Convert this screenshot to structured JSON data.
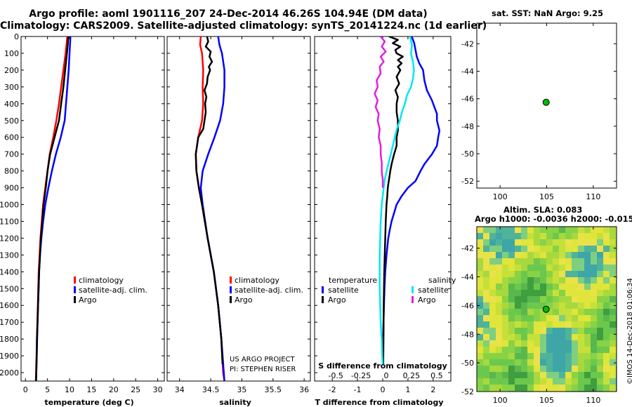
{
  "header": {
    "title_line1": "Argo profile: aoml 1901116_207 24-Dec-2014 46.26S 104.94E (DM data)",
    "title_line2": "Climatology: CARS2009. Satellite-adjusted climatology: synTS_20141224.nc (1d earlier)"
  },
  "colors": {
    "climatology": "#ff0000",
    "satellite": "#0000ff",
    "argo": "#000000",
    "satellite_salinity": "#00e8f0",
    "argo_salinity": "#e020e0",
    "dot": "#00bb00"
  },
  "credit": {
    "line1": "US ARGO PROJECT",
    "line2": "PI: STEPHEN RISER"
  },
  "watermark": "©IMOS 14-Dec-2018 01:06:34",
  "chart_data": [
    {
      "id": "temperature",
      "type": "line",
      "title": "",
      "xlabel": "temperature (deg C)",
      "ylabel": "",
      "xlim": [
        -1,
        31.5
      ],
      "ylim": [
        2050,
        0
      ],
      "xticks": [
        0,
        5,
        10,
        15,
        20,
        25,
        30
      ],
      "yticks": [
        0,
        100,
        200,
        300,
        400,
        500,
        600,
        700,
        800,
        900,
        1000,
        1100,
        1200,
        1300,
        1400,
        1500,
        1600,
        1700,
        1800,
        1900,
        2000
      ],
      "legend": {
        "position": "bottom-right",
        "entries": [
          "climatology",
          "satellite-adj. clim.",
          "Argo"
        ]
      },
      "series": [
        {
          "name": "climatology",
          "color": "#ff0000",
          "depth": [
            0,
            50,
            100,
            200,
            300,
            400,
            500,
            600,
            700,
            800,
            900,
            1000,
            1100,
            1200,
            1300,
            1400,
            1500,
            1600,
            1700,
            1800,
            1900,
            2000,
            2050
          ],
          "values": [
            9.5,
            9.3,
            9.1,
            8.6,
            8.1,
            7.6,
            7.0,
            6.3,
            5.5,
            5.0,
            4.5,
            4.0,
            3.7,
            3.4,
            3.2,
            3.0,
            2.9,
            2.8,
            2.7,
            2.6,
            2.5,
            2.4,
            2.35
          ]
        },
        {
          "name": "satellite-adj. clim.",
          "color": "#0000ff",
          "depth": [
            0,
            50,
            100,
            200,
            300,
            400,
            500,
            600,
            700,
            800,
            900,
            1000,
            1100,
            1200,
            1300,
            1400,
            1500,
            1600,
            1700,
            1800,
            1900,
            2000,
            2050
          ],
          "values": [
            10.2,
            10.1,
            10.0,
            9.8,
            9.5,
            9.2,
            8.9,
            8.0,
            6.9,
            6.0,
            5.2,
            4.5,
            4.0,
            3.6,
            3.3,
            3.1,
            3.0,
            2.85,
            2.75,
            2.65,
            2.55,
            2.45,
            2.4
          ]
        },
        {
          "name": "Argo",
          "color": "#000000",
          "depth": [
            0,
            50,
            100,
            200,
            300,
            400,
            500,
            600,
            700,
            800,
            900,
            1000,
            1100,
            1200,
            1300,
            1400,
            1500,
            1600,
            1700,
            1800,
            1900,
            2000,
            2050
          ],
          "values": [
            9.7,
            9.6,
            9.4,
            9.0,
            8.6,
            8.1,
            7.6,
            6.6,
            5.6,
            5.0,
            4.6,
            4.1,
            3.8,
            3.5,
            3.3,
            3.1,
            2.95,
            2.85,
            2.75,
            2.6,
            2.55,
            2.45,
            2.4
          ]
        }
      ]
    },
    {
      "id": "salinity",
      "type": "line",
      "title": "",
      "xlabel": "salinity",
      "ylabel": "",
      "xlim": [
        33.8,
        36.1
      ],
      "ylim": [
        2050,
        0
      ],
      "xticks": [
        34,
        34.5,
        35,
        35.5,
        36
      ],
      "legend": {
        "position": "bottom-right",
        "entries": [
          "climatology",
          "satellite-adj. clim.",
          "Argo"
        ]
      },
      "series": [
        {
          "name": "climatology",
          "color": "#ff0000",
          "depth": [
            0,
            50,
            100,
            200,
            300,
            400,
            500,
            600,
            700,
            800,
            900,
            1000,
            1200,
            1400,
            1600,
            1800,
            2000,
            2050
          ],
          "values": [
            34.34,
            34.33,
            34.36,
            34.38,
            34.37,
            34.38,
            34.36,
            34.3,
            34.26,
            34.27,
            34.31,
            34.36,
            34.45,
            34.55,
            34.62,
            34.67,
            34.7,
            34.72
          ]
        },
        {
          "name": "satellite-adj. clim.",
          "color": "#0000ff",
          "depth": [
            0,
            50,
            100,
            200,
            300,
            400,
            500,
            600,
            700,
            800,
            900,
            1000,
            1200,
            1400,
            1600,
            1800,
            2000,
            2050
          ],
          "values": [
            34.62,
            34.64,
            34.68,
            34.72,
            34.72,
            34.7,
            34.65,
            34.56,
            34.46,
            34.37,
            34.34,
            34.37,
            34.45,
            34.55,
            34.62,
            34.67,
            34.71,
            34.72
          ]
        },
        {
          "name": "Argo",
          "color": "#000000",
          "depth": [
            0,
            30,
            60,
            90,
            120,
            150,
            180,
            200,
            240,
            280,
            320,
            360,
            400,
            450,
            500,
            550,
            600,
            700,
            800,
            900,
            1000,
            1200,
            1400,
            1600,
            1800,
            1950
          ],
          "values": [
            34.44,
            34.46,
            34.42,
            34.5,
            34.48,
            34.52,
            34.47,
            34.49,
            34.45,
            34.44,
            34.4,
            34.43,
            34.41,
            34.42,
            34.4,
            34.38,
            34.3,
            34.26,
            34.27,
            34.31,
            34.36,
            34.45,
            34.55,
            34.62,
            34.67,
            34.69
          ]
        }
      ]
    },
    {
      "id": "differences",
      "type": "line",
      "title": "",
      "xlabel": "T difference from climatology",
      "xlabel_top": "S difference from climatology",
      "ylabel": "",
      "xlim": [
        -2.7,
        2.7
      ],
      "ylim": [
        2050,
        0
      ],
      "xticks": [
        -2,
        -1,
        0,
        1,
        2
      ],
      "xticks_top": [
        -0.5,
        -0.25,
        0,
        0.25,
        0.5
      ],
      "xticks_top_labels": [
        "-0.5",
        "-0.25",
        "0",
        "0.25",
        "0.5"
      ],
      "legend": {
        "position": "bottom",
        "headers": [
          "temperature",
          "salinity"
        ],
        "entries": [
          "satellite",
          "Argo",
          "satellite",
          "Argo"
        ]
      },
      "series": [
        {
          "name": "temperature satellite",
          "color": "#0000ff",
          "axis": "T",
          "depth": [
            0,
            40,
            80,
            120,
            160,
            200,
            260,
            320,
            380,
            420,
            460,
            500,
            560,
            600,
            650,
            700,
            760,
            800,
            860,
            900,
            950,
            1000,
            1050,
            1100,
            1150,
            1200,
            1300,
            1400,
            1500,
            1600,
            1700,
            1800,
            1900,
            1950
          ],
          "values": [
            1.15,
            1.25,
            1.3,
            1.35,
            1.45,
            1.6,
            1.65,
            1.75,
            1.95,
            2.05,
            2.15,
            2.15,
            2.25,
            2.2,
            2.15,
            1.95,
            1.65,
            1.5,
            1.3,
            1.0,
            0.75,
            0.55,
            0.45,
            0.35,
            0.28,
            0.22,
            0.15,
            0.1,
            0.07,
            0.05,
            0.03,
            0.02,
            0.01,
            0.0
          ]
        },
        {
          "name": "temperature Argo",
          "color": "#000000",
          "axis": "T",
          "depth": [
            0,
            20,
            40,
            60,
            80,
            100,
            120,
            140,
            160,
            180,
            200,
            240,
            280,
            320,
            360,
            400,
            450,
            500,
            560,
            600,
            650,
            700,
            760,
            800,
            850,
            900,
            950,
            1000,
            1100,
            1200,
            1300,
            1400,
            1500,
            1600,
            1800,
            1950
          ],
          "values": [
            0.25,
            0.6,
            0.4,
            0.7,
            0.5,
            0.55,
            0.8,
            0.6,
            0.75,
            0.6,
            0.7,
            0.55,
            0.65,
            0.5,
            0.6,
            0.55,
            0.55,
            0.6,
            0.6,
            0.55,
            0.55,
            0.45,
            0.35,
            0.3,
            0.25,
            0.2,
            0.18,
            0.15,
            0.12,
            0.1,
            0.08,
            0.06,
            0.05,
            0.04,
            0.03,
            0.02
          ]
        },
        {
          "name": "salinity satellite",
          "color": "#00e8f0",
          "axis": "S",
          "depth": [
            0,
            50,
            100,
            150,
            200,
            250,
            300,
            350,
            400,
            450,
            500,
            550,
            600,
            650,
            700,
            750,
            800,
            850,
            900,
            950,
            1000,
            1100,
            1200,
            1300,
            1400,
            1500,
            1600,
            1700,
            1800,
            1900,
            1950
          ],
          "values": [
            0.27,
            0.29,
            0.28,
            0.3,
            0.31,
            0.3,
            0.28,
            0.24,
            0.22,
            0.19,
            0.17,
            0.14,
            0.12,
            0.1,
            0.08,
            0.06,
            0.04,
            0.02,
            0.01,
            0.0,
            -0.01,
            -0.02,
            -0.025,
            -0.03,
            -0.03,
            -0.03,
            -0.025,
            -0.02,
            -0.01,
            -0.005,
            0.0
          ]
        },
        {
          "name": "salinity Argo",
          "color": "#e020e0",
          "axis": "S",
          "depth": [
            0,
            30,
            60,
            90,
            120,
            150,
            180,
            220,
            260,
            300,
            340,
            380,
            420,
            460,
            500,
            550,
            600,
            650,
            700,
            750,
            800,
            850,
            900
          ],
          "values": [
            -0.02,
            0.02,
            -0.01,
            0.03,
            -0.02,
            0.01,
            -0.03,
            -0.02,
            -0.06,
            -0.05,
            -0.08,
            -0.05,
            -0.07,
            -0.04,
            -0.05,
            -0.03,
            -0.04,
            -0.02,
            -0.02,
            -0.01,
            -0.01,
            0.0,
            0.0
          ]
        }
      ]
    },
    {
      "id": "position_sst",
      "type": "scatter",
      "title": "sat. SST: NaN Argo: 9.25",
      "xlabel": "",
      "ylabel": "",
      "xlim": [
        97.5,
        112.5
      ],
      "ylim": [
        -52.5,
        -40.5
      ],
      "xticks": [
        100,
        105,
        110
      ],
      "yticks": [
        -42,
        -44,
        -46,
        -48,
        -50,
        -52
      ],
      "points": [
        {
          "x": 104.94,
          "y": -46.26
        }
      ]
    },
    {
      "id": "position_sla",
      "type": "heatmap",
      "title": "Altim. SLA: 0.083",
      "subtitle": "Argo h1000: -0.0036 h2000: -0.015",
      "xlabel": "",
      "ylabel": "",
      "xlim": [
        97.5,
        112.5
      ],
      "ylim": [
        -52,
        -40.5
      ],
      "xticks": [
        100,
        105,
        110
      ],
      "yticks": [
        -42,
        -44,
        -46,
        -48,
        -50,
        -52
      ],
      "points": [
        {
          "x": 104.94,
          "y": -46.26
        }
      ]
    }
  ]
}
